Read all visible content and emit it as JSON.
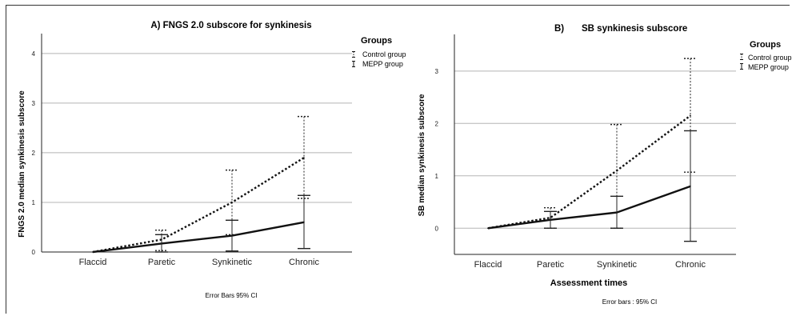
{
  "chart_data": [
    {
      "type": "line",
      "title": "A) FNGS 2.0 subscore for synkinesis",
      "ylabel": "FNGS 2.0 median synkinesis subscore",
      "xlabel": "",
      "categories": [
        "Flaccid",
        "Paretic",
        "Synkinetic",
        "Chronic"
      ],
      "ylim": [
        0,
        4.4
      ],
      "yticks": [
        0,
        1,
        2,
        3,
        4
      ],
      "grid": true,
      "legend_title": "Groups",
      "legend_position": "right",
      "series": [
        {
          "name": "Control group",
          "style": "dotted",
          "values": [
            0,
            0.25,
            1.0,
            1.9
          ],
          "ci_low": [
            null,
            0.03,
            0.35,
            1.08
          ],
          "ci_high": [
            null,
            0.44,
            1.65,
            2.73
          ]
        },
        {
          "name": "MEPP group",
          "style": "solid",
          "values": [
            0,
            0.17,
            0.33,
            0.6
          ],
          "ci_low": [
            null,
            0.0,
            0.02,
            0.07
          ],
          "ci_high": [
            null,
            0.35,
            0.64,
            1.14
          ]
        }
      ],
      "note": "Error Bars 95% CI"
    },
    {
      "type": "line",
      "title": "SB synkinesis subscore",
      "panel_label": "B)",
      "ylabel": "SB median synkinesis subscore",
      "xlabel": "Assessment times",
      "categories": [
        "Flaccid",
        "Paretic",
        "Synkinetic",
        "Chronic"
      ],
      "ylim": [
        -0.5,
        3.7
      ],
      "yticks": [
        0,
        1,
        2,
        3
      ],
      "grid": true,
      "legend_title": "Groups",
      "legend_position": "right",
      "series": [
        {
          "name": "Control group",
          "style": "dotted",
          "values": [
            0,
            0.2,
            1.1,
            2.15
          ],
          "ci_low": [
            null,
            0.0,
            0.0,
            1.07
          ],
          "ci_high": [
            null,
            0.39,
            1.98,
            3.24
          ]
        },
        {
          "name": "MEPP group",
          "style": "solid",
          "values": [
            0,
            0.16,
            0.3,
            0.8
          ],
          "ci_low": [
            null,
            0.0,
            0.0,
            -0.25
          ],
          "ci_high": [
            null,
            0.32,
            0.61,
            1.86
          ]
        }
      ],
      "note": "Error bars : 95% CI"
    }
  ]
}
